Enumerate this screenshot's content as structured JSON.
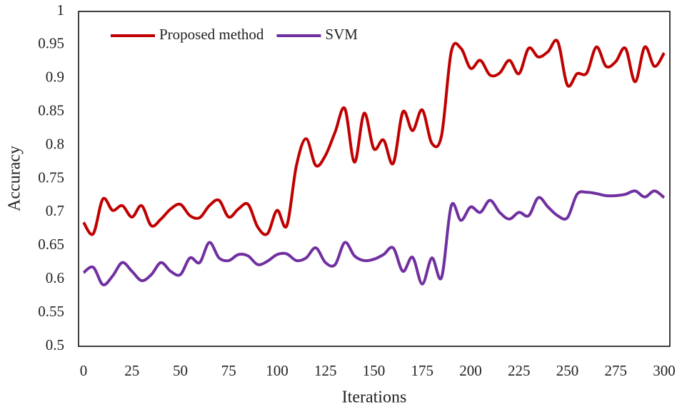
{
  "chart_data": {
    "type": "line",
    "x_label": "Iterations",
    "y_label": "Accuracy",
    "x": [
      0,
      5,
      10,
      15,
      20,
      25,
      30,
      35,
      40,
      45,
      50,
      55,
      60,
      65,
      70,
      75,
      80,
      85,
      90,
      95,
      100,
      105,
      110,
      115,
      120,
      125,
      130,
      135,
      140,
      145,
      150,
      155,
      160,
      165,
      170,
      175,
      180,
      185,
      190,
      195,
      200,
      205,
      210,
      215,
      220,
      225,
      230,
      235,
      240,
      245,
      250,
      255,
      260,
      265,
      270,
      275,
      280,
      285,
      290,
      295,
      300
    ],
    "series": [
      {
        "name": "Proposed method",
        "color": "#c00000",
        "values": [
          0.685,
          0.668,
          0.72,
          0.703,
          0.71,
          0.693,
          0.71,
          0.68,
          0.69,
          0.705,
          0.712,
          0.695,
          0.692,
          0.71,
          0.718,
          0.693,
          0.705,
          0.712,
          0.678,
          0.668,
          0.703,
          0.68,
          0.77,
          0.81,
          0.77,
          0.785,
          0.82,
          0.855,
          0.775,
          0.848,
          0.795,
          0.808,
          0.773,
          0.85,
          0.822,
          0.853,
          0.803,
          0.815,
          0.94,
          0.945,
          0.915,
          0.927,
          0.905,
          0.908,
          0.927,
          0.907,
          0.945,
          0.932,
          0.94,
          0.955,
          0.89,
          0.907,
          0.908,
          0.947,
          0.918,
          0.925,
          0.945,
          0.895,
          0.947,
          0.918,
          0.938
        ]
      },
      {
        "name": "SVM",
        "color": "#7030a0",
        "values": [
          0.61,
          0.618,
          0.592,
          0.605,
          0.625,
          0.612,
          0.598,
          0.607,
          0.625,
          0.612,
          0.607,
          0.632,
          0.625,
          0.655,
          0.632,
          0.628,
          0.637,
          0.635,
          0.622,
          0.627,
          0.637,
          0.638,
          0.628,
          0.632,
          0.647,
          0.625,
          0.622,
          0.655,
          0.635,
          0.628,
          0.63,
          0.637,
          0.647,
          0.612,
          0.633,
          0.593,
          0.632,
          0.603,
          0.71,
          0.688,
          0.708,
          0.7,
          0.718,
          0.7,
          0.69,
          0.7,
          0.695,
          0.722,
          0.708,
          0.695,
          0.692,
          0.727,
          0.73,
          0.728,
          0.725,
          0.725,
          0.727,
          0.732,
          0.723,
          0.732,
          0.722
        ]
      }
    ],
    "xlim": [
      0,
      300
    ],
    "xticks": [
      0,
      25,
      50,
      75,
      100,
      125,
      150,
      175,
      200,
      225,
      250,
      275,
      300
    ],
    "ylim": [
      0.5,
      1
    ],
    "yticks": [
      0.5,
      0.55,
      0.6,
      0.65,
      0.7,
      0.75,
      0.8,
      0.85,
      0.9,
      0.95,
      1
    ],
    "grid": false,
    "legend": "upper left"
  }
}
